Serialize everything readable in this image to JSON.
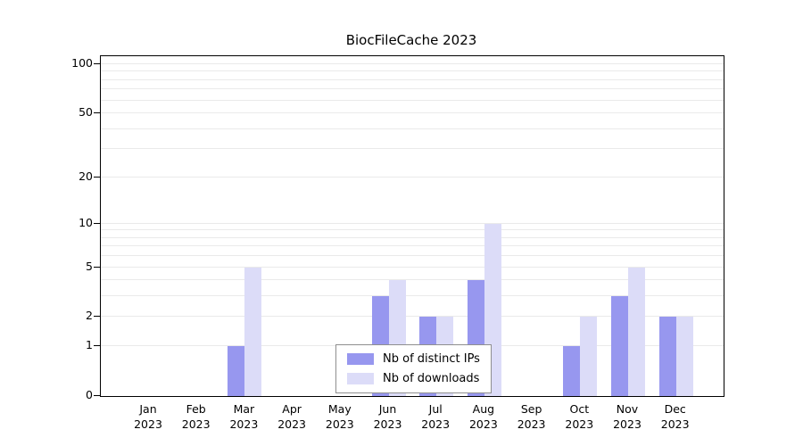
{
  "chart_data": {
    "type": "bar",
    "title": "BiocFileCache 2023",
    "year": "2023",
    "categories": [
      "Jan",
      "Feb",
      "Mar",
      "Apr",
      "May",
      "Jun",
      "Jul",
      "Aug",
      "Sep",
      "Oct",
      "Nov",
      "Dec"
    ],
    "series": [
      {
        "name": "Nb of distinct IPs",
        "color": "#9797ef",
        "values": [
          0,
          0,
          1,
          0,
          0,
          3,
          2,
          4,
          0,
          1,
          3,
          2
        ]
      },
      {
        "name": "Nb of downloads",
        "color": "#dcdcf8",
        "values": [
          0,
          0,
          5,
          0,
          0,
          4,
          2,
          10,
          0,
          2,
          5,
          2
        ]
      }
    ],
    "yticks": [
      0,
      1,
      2,
      5,
      10,
      20,
      50,
      100
    ],
    "minor_gridlines": [
      1,
      2,
      3,
      4,
      5,
      6,
      7,
      8,
      9,
      10,
      20,
      30,
      40,
      50,
      60,
      70,
      80,
      90,
      100
    ],
    "yaxis_scale": "log10(1+x)",
    "ylim": [
      0,
      115
    ],
    "grid": true,
    "legend_position": "bottom-center"
  },
  "colors": {
    "grid": "#eaeaea",
    "axis": "#000000",
    "background": "#ffffff"
  }
}
